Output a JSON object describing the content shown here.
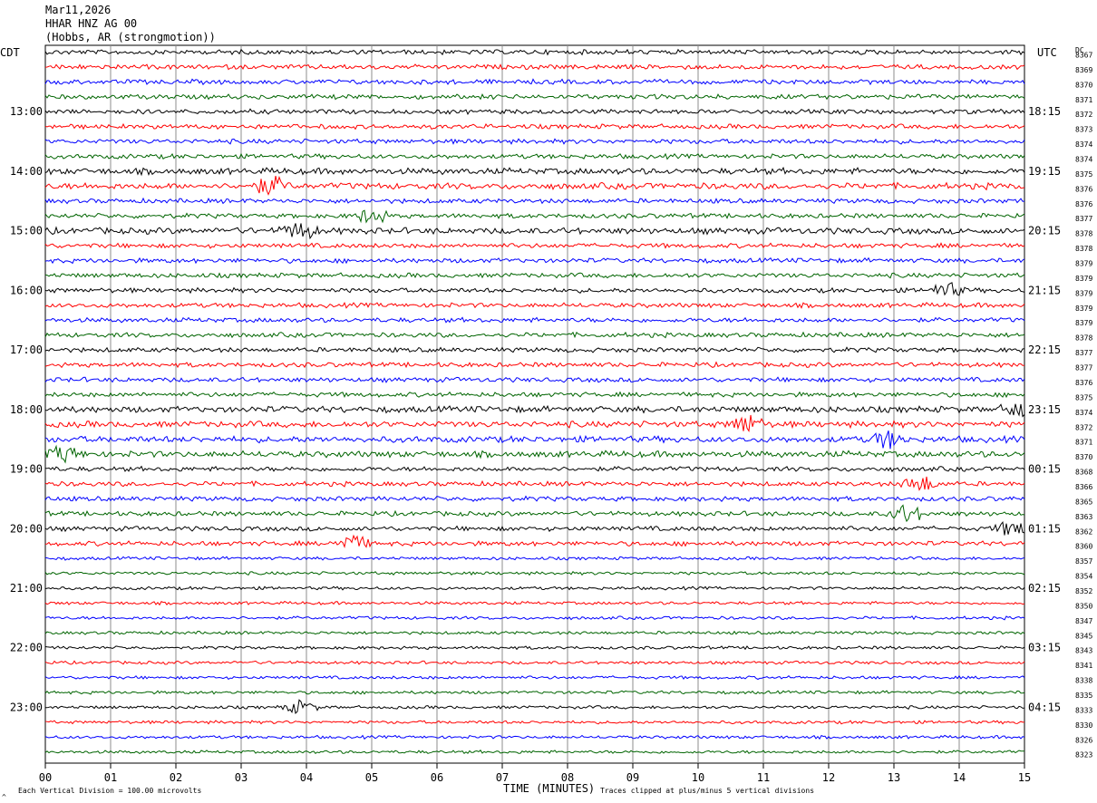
{
  "header": {
    "date": "Mar11,2026",
    "station": "HHAR HNZ AG 00",
    "location": "(Hobbs, AR (strongmotion))"
  },
  "left_tz": "CDT",
  "right_tz": "UTC",
  "dc_label": "DC",
  "footer": {
    "scale_note": "Each Vertical Division =  100.00 microvolts",
    "clip_note": "Traces clipped at plus/minus 5 vertical divisions",
    "corner_mark": "^"
  },
  "trace_colors": [
    "#000000",
    "#ff0000",
    "#0000ff",
    "#006400"
  ],
  "chart_data": {
    "type": "line",
    "title": "",
    "xlabel": "TIME (MINUTES)",
    "ylabel": "",
    "x_ticks": [
      "00",
      "01",
      "02",
      "03",
      "04",
      "05",
      "06",
      "07",
      "08",
      "09",
      "10",
      "11",
      "12",
      "13",
      "14",
      "15"
    ],
    "xlim": [
      0,
      15
    ],
    "rows_per_hour": 4,
    "row_count": 48,
    "left_hour_labels": [
      "13:00",
      "14:00",
      "15:00",
      "16:00",
      "17:00",
      "18:00",
      "19:00",
      "20:00",
      "21:00",
      "22:00",
      "23:00"
    ],
    "right_hour_labels": [
      "18:15",
      "19:15",
      "20:15",
      "21:15",
      "22:15",
      "23:15",
      "00:15",
      "01:15",
      "02:15",
      "03:15",
      "04:15"
    ],
    "first_hour_label_row": 4,
    "dc_offsets": [
      "8367",
      "8369",
      "8370",
      "8371",
      "8372",
      "8373",
      "8374",
      "8374",
      "8375",
      "8376",
      "8376",
      "8377",
      "8378",
      "8378",
      "8379",
      "8379",
      "8379",
      "8379",
      "8379",
      "8378",
      "8377",
      "8377",
      "8376",
      "8375",
      "8374",
      "8372",
      "8371",
      "8370",
      "8368",
      "8366",
      "8365",
      "8363",
      "8362",
      "8360",
      "8357",
      "8354",
      "8352",
      "8350",
      "8347",
      "8345",
      "8343",
      "8341",
      "8338",
      "8335",
      "8333",
      "8330",
      "8326",
      "8323"
    ],
    "trace_amplitude": [
      3,
      3,
      3,
      3,
      3,
      3,
      3,
      3,
      4,
      4,
      3,
      3,
      4,
      3,
      3,
      3,
      3,
      3,
      3,
      3,
      3,
      3,
      3,
      3,
      4,
      4,
      4,
      4,
      3,
      3,
      3,
      3,
      3,
      3,
      2,
      2,
      2,
      2,
      2,
      2,
      2,
      2,
      2,
      2,
      2,
      2,
      2,
      2
    ],
    "events": [
      {
        "row": 9,
        "minute": 3.45,
        "amp": 10
      },
      {
        "row": 11,
        "minute": 5.0,
        "amp": 8
      },
      {
        "row": 12,
        "minute": 3.9,
        "amp": 9
      },
      {
        "row": 16,
        "minute": 13.8,
        "amp": 8
      },
      {
        "row": 24,
        "minute": 14.9,
        "amp": 7
      },
      {
        "row": 25,
        "minute": 10.75,
        "amp": 10
      },
      {
        "row": 26,
        "minute": 12.9,
        "amp": 9
      },
      {
        "row": 27,
        "minute": 0.3,
        "amp": 8
      },
      {
        "row": 29,
        "minute": 13.4,
        "amp": 9
      },
      {
        "row": 31,
        "minute": 13.2,
        "amp": 10
      },
      {
        "row": 32,
        "minute": 14.8,
        "amp": 8
      },
      {
        "row": 33,
        "minute": 4.7,
        "amp": 9
      },
      {
        "row": 44,
        "minute": 3.9,
        "amp": 7
      }
    ]
  }
}
